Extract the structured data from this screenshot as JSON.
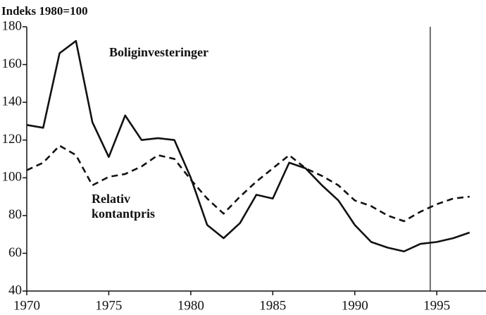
{
  "chart_data": {
    "type": "line",
    "y_label": "Indeks 1980=100",
    "x": [
      1970,
      1971,
      1972,
      1973,
      1974,
      1975,
      1976,
      1977,
      1978,
      1979,
      1980,
      1981,
      1982,
      1983,
      1984,
      1985,
      1986,
      1987,
      1988,
      1989,
      1990,
      1991,
      1992,
      1993,
      1994,
      1995,
      1996,
      1997
    ],
    "series": [
      {
        "color": "#111111",
        "dash": "solid",
        "values": [
          128,
          126.5,
          166,
          172.5,
          129.5,
          111,
          133,
          120,
          121,
          120,
          100,
          75,
          68,
          76,
          91,
          89,
          108,
          105,
          96,
          88,
          75,
          66,
          63,
          61,
          65,
          66,
          68,
          71
        ]
      },
      {
        "color": "#111111",
        "dash": "dashed",
        "values": [
          104,
          108,
          117,
          112,
          96,
          100.5,
          102,
          106,
          112,
          110,
          99,
          89,
          81,
          90,
          98,
          105,
          112,
          105,
          101,
          96,
          88,
          85,
          80,
          77,
          82,
          86,
          89,
          90
        ]
      }
    ],
    "annotations": [
      "Boliginvesteringer",
      "Relativ",
      "kontantpris"
    ],
    "vline_x": 1994.6,
    "xlim": [
      1970,
      1998
    ],
    "ylim": [
      40,
      180
    ],
    "xticks": [
      1970,
      1975,
      1980,
      1985,
      1990,
      1995
    ],
    "yticks": [
      40,
      60,
      80,
      100,
      120,
      140,
      160,
      180
    ]
  }
}
